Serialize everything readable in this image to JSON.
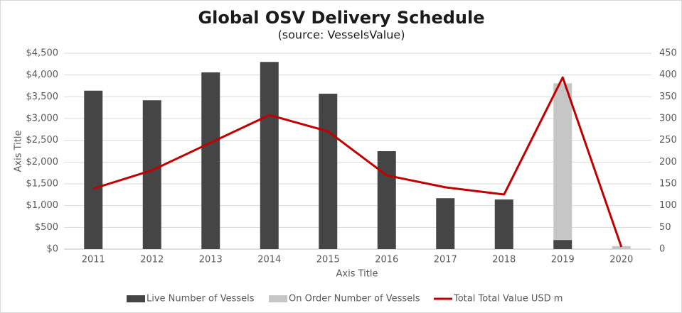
{
  "chart_data": {
    "type": "bar",
    "title": "Global OSV Delivery Schedule",
    "subtitle": "(source: VesselsValue)",
    "x_label": "Axis Title",
    "y_label": "Axis Title",
    "categories": [
      "2011",
      "2012",
      "2013",
      "2014",
      "2015",
      "2016",
      "2017",
      "2018",
      "2019",
      "2020"
    ],
    "stacked": true,
    "series": [
      {
        "name": "Live Number of Vessels",
        "type": "bar",
        "axis": "y2",
        "color": "#454545",
        "values": [
          364,
          342,
          406,
          430,
          357,
          225,
          117,
          114,
          21,
          0
        ]
      },
      {
        "name": "On Order Number of Vessels",
        "type": "bar",
        "axis": "y2",
        "color": "#c6c6c6",
        "values": [
          0,
          0,
          0,
          0,
          0,
          0,
          0,
          0,
          360,
          7
        ]
      },
      {
        "name": "Total Total Value USD m",
        "type": "line",
        "axis": "y",
        "color": "#c00000",
        "values": [
          1390,
          1810,
          2445,
          3080,
          2705,
          1695,
          1420,
          1255,
          3945,
          50
        ]
      }
    ],
    "ylim": [
      0,
      4500
    ],
    "yticks": [
      {
        "value": 0,
        "label": "$0"
      },
      {
        "value": 500,
        "label": "$500"
      },
      {
        "value": 1000,
        "label": "$1,000"
      },
      {
        "value": 1500,
        "label": "$1,500"
      },
      {
        "value": 2000,
        "label": "$2,000"
      },
      {
        "value": 2500,
        "label": "$2,500"
      },
      {
        "value": 3000,
        "label": "$3,000"
      },
      {
        "value": 3500,
        "label": "$3,500"
      },
      {
        "value": 4000,
        "label": "$4,000"
      },
      {
        "value": 4500,
        "label": "$4,500"
      }
    ],
    "y2lim": [
      0,
      450
    ],
    "y2ticks": [
      0,
      50,
      100,
      150,
      200,
      250,
      300,
      350,
      400,
      450
    ],
    "grid": true,
    "legend": "bottom"
  }
}
